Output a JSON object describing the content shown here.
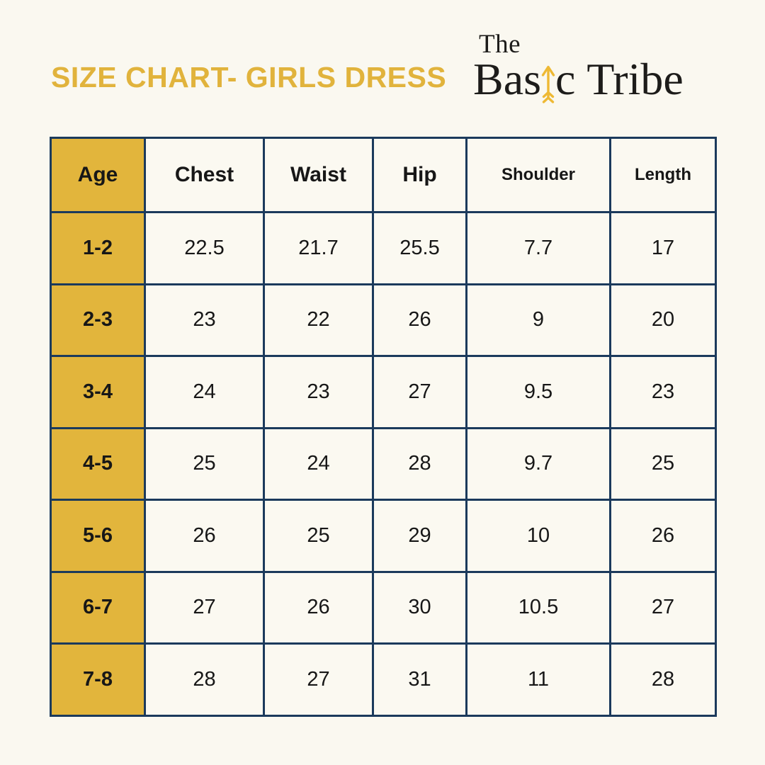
{
  "title": {
    "text": "SIZE CHART- GIRLS DRESS"
  },
  "logo": {
    "the": "The",
    "basic_pre": "Bas",
    "basic_post": "c ",
    "tribe": "Tribe"
  },
  "colors": {
    "accent_gold": "#E2B53C",
    "arrow_gold": "#EEB934",
    "border_navy": "#1B3A5C",
    "background_cream": "#FAF8F0",
    "cell_background": "#FBF9F1",
    "title_gold": "#E1B33C",
    "text_dark": "#171717",
    "logo_ink": "#1D1C1A"
  },
  "chart_data": {
    "type": "table",
    "title": "SIZE CHART- GIRLS DRESS",
    "columns": [
      "Age",
      "Chest",
      "Waist",
      "Hip",
      "Shoulder",
      "Length"
    ],
    "rows": [
      [
        "1-2",
        "22.5",
        "21.7",
        "25.5",
        "7.7",
        "17"
      ],
      [
        "2-3",
        "23",
        "22",
        "26",
        "9",
        "20"
      ],
      [
        "3-4",
        "24",
        "23",
        "27",
        "9.5",
        "23"
      ],
      [
        "4-5",
        "25",
        "24",
        "28",
        "9.7",
        "25"
      ],
      [
        "5-6",
        "26",
        "25",
        "29",
        "10",
        "26"
      ],
      [
        "6-7",
        "27",
        "26",
        "30",
        "10.5",
        "27"
      ],
      [
        "7-8",
        "28",
        "27",
        "31",
        "11",
        "28"
      ]
    ],
    "accent_column": "Age",
    "layout_hints": {
      "accent_column_background": "#E2B53C",
      "grid": "on"
    }
  }
}
